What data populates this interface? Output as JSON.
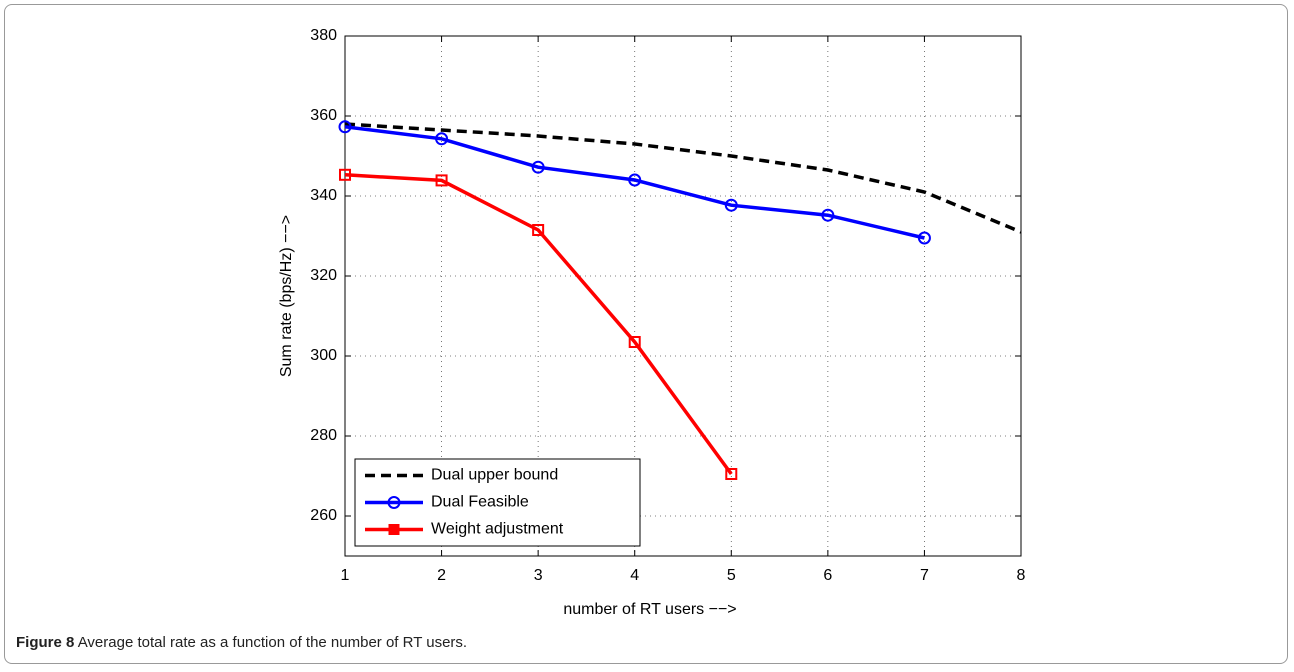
{
  "chart_data": {
    "type": "line",
    "xlabel": "number of RT users −−>",
    "ylabel": "Sum rate (bps/Hz)   −−>",
    "x": [
      1,
      2,
      3,
      4,
      5,
      6,
      7,
      8
    ],
    "series": [
      {
        "name": "Dual upper bound",
        "color": "#000000",
        "linestyle": "dashed",
        "marker": "none",
        "values": [
          358,
          356.5,
          355,
          353,
          350,
          346.5,
          341,
          331
        ]
      },
      {
        "name": "Dual Feasible",
        "color": "#0000ff",
        "linestyle": "solid",
        "marker": "circle",
        "values": [
          357.3,
          354.3,
          347.2,
          344,
          337.7,
          335.2,
          329.5,
          null
        ]
      },
      {
        "name": "Weight adjustment",
        "color": "#ff0000",
        "linestyle": "solid",
        "marker": "square",
        "values": [
          345.3,
          343.9,
          331.5,
          303.5,
          270.5,
          null,
          null,
          null
        ]
      }
    ],
    "xlim": [
      1,
      8
    ],
    "xticks": [
      1,
      2,
      3,
      4,
      5,
      6,
      7,
      8
    ],
    "ylim": [
      250,
      380
    ],
    "yticks": [
      260,
      280,
      300,
      320,
      340,
      360,
      380
    ],
    "grid": true,
    "legend": "lower left"
  },
  "caption": {
    "label": "Figure 8",
    "text": "Average total rate as a function of the number of RT users."
  }
}
